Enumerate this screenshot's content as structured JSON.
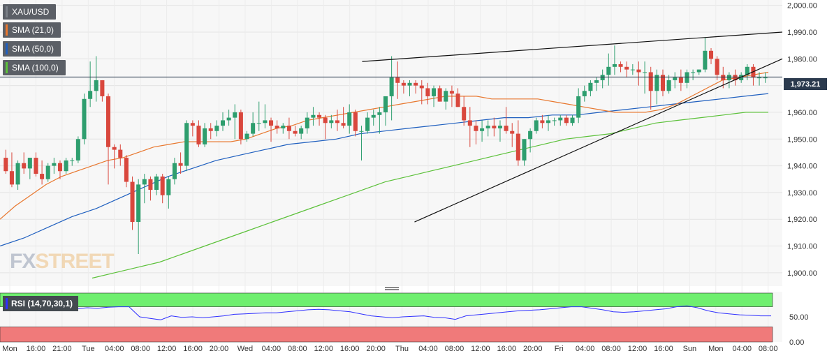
{
  "legend": [
    {
      "label": "XAU/USD",
      "color": "#5b5f66"
    },
    {
      "label": "SMA (21,0)",
      "color": "#e8772e"
    },
    {
      "label": "SMA (50,0)",
      "color": "#1f5fbf"
    },
    {
      "label": "SMA (100,0)",
      "color": "#5cc13a"
    }
  ],
  "rsi_label": "RSI (14,70,30,1)",
  "last_price": "1,973.21",
  "watermark": {
    "part1": "FX",
    "part2": "STREET"
  },
  "chart_data": {
    "type": "candlestick",
    "symbol": "XAU/USD",
    "ylim": [
      1895,
      2002
    ],
    "y_ticks": [
      "2,000.00",
      "1,990.00",
      "1,980.00",
      "1,970.00",
      "1,960.00",
      "1,950.00",
      "1,940.00",
      "1,930.00",
      "1,920.00",
      "1,910.00",
      "1,900.00"
    ],
    "x_ticks": [
      "Mon",
      "16:00",
      "21:00",
      "Tue",
      "04:00",
      "08:00",
      "12:00",
      "16:00",
      "20:00",
      "Wed",
      "04:00",
      "08:00",
      "12:00",
      "16:00",
      "20:00",
      "Thu",
      "04:00",
      "08:00",
      "12:00",
      "16:00",
      "20:00",
      "Fri",
      "04:00",
      "08:00",
      "12:00",
      "16:00",
      "Sun",
      "Mon",
      "04:00",
      "08:00"
    ],
    "last_price": 1973.21,
    "candles": [
      [
        1943,
        1946,
        1937,
        1938
      ],
      [
        1938,
        1945,
        1932,
        1933
      ],
      [
        1933,
        1942,
        1931,
        1941
      ],
      [
        1941,
        1945,
        1937,
        1939
      ],
      [
        1939,
        1943,
        1935,
        1943
      ],
      [
        1943,
        1945,
        1936,
        1937
      ],
      [
        1937,
        1942,
        1933,
        1935
      ],
      [
        1935,
        1941,
        1934,
        1940
      ],
      [
        1940,
        1943,
        1937,
        1941
      ],
      [
        1941,
        1942,
        1935,
        1938
      ],
      [
        1938,
        1943,
        1937,
        1942
      ],
      [
        1942,
        1943,
        1940,
        1942
      ],
      [
        1942,
        1951,
        1941,
        1950
      ],
      [
        1950,
        1967,
        1948,
        1965
      ],
      [
        1965,
        1979,
        1962,
        1968
      ],
      [
        1968,
        1981,
        1964,
        1972
      ],
      [
        1972,
        1972,
        1964,
        1966
      ],
      [
        1966,
        1967,
        1933,
        1947
      ],
      [
        1947,
        1948,
        1939,
        1946
      ],
      [
        1946,
        1948,
        1940,
        1943
      ],
      [
        1943,
        1944,
        1932,
        1934
      ],
      [
        1934,
        1936,
        1916,
        1919
      ],
      [
        1919,
        1935,
        1907,
        1933
      ],
      [
        1933,
        1937,
        1926,
        1935
      ],
      [
        1935,
        1936,
        1927,
        1931
      ],
      [
        1931,
        1937,
        1929,
        1936
      ],
      [
        1936,
        1937,
        1926,
        1929
      ],
      [
        1929,
        1936,
        1924,
        1935
      ],
      [
        1935,
        1943,
        1933,
        1941
      ],
      [
        1941,
        1945,
        1937,
        1940
      ],
      [
        1940,
        1957,
        1938,
        1956
      ],
      [
        1956,
        1957,
        1951,
        1955
      ],
      [
        1955,
        1957,
        1947,
        1948
      ],
      [
        1948,
        1956,
        1947,
        1954
      ],
      [
        1954,
        1956,
        1950,
        1953
      ],
      [
        1953,
        1957,
        1951,
        1955
      ],
      [
        1955,
        1960,
        1953,
        1957
      ],
      [
        1957,
        1961,
        1955,
        1958
      ],
      [
        1958,
        1963,
        1950,
        1960
      ],
      [
        1960,
        1961,
        1948,
        1950
      ],
      [
        1950,
        1953,
        1949,
        1952
      ],
      [
        1952,
        1960,
        1951,
        1956
      ],
      [
        1956,
        1964,
        1953,
        1956
      ],
      [
        1956,
        1963,
        1954,
        1957
      ],
      [
        1957,
        1958,
        1949,
        1955
      ],
      [
        1955,
        1957,
        1952,
        1954
      ],
      [
        1954,
        1956,
        1952,
        1955
      ],
      [
        1955,
        1958,
        1950,
        1953
      ],
      [
        1953,
        1955,
        1951,
        1952
      ],
      [
        1952,
        1955,
        1950,
        1954
      ],
      [
        1954,
        1960,
        1952,
        1958
      ],
      [
        1958,
        1962,
        1955,
        1959
      ],
      [
        1959,
        1960,
        1955,
        1958
      ],
      [
        1958,
        1959,
        1950,
        1956
      ],
      [
        1956,
        1959,
        1954,
        1957
      ],
      [
        1957,
        1961,
        1953,
        1956
      ],
      [
        1956,
        1962,
        1954,
        1955
      ],
      [
        1955,
        1963,
        1952,
        1960
      ],
      [
        1960,
        1961,
        1951,
        1953
      ],
      [
        1953,
        1955,
        1942,
        1953
      ],
      [
        1953,
        1960,
        1952,
        1958
      ],
      [
        1958,
        1961,
        1955,
        1959
      ],
      [
        1959,
        1962,
        1952,
        1960
      ],
      [
        1960,
        1966,
        1955,
        1966
      ],
      [
        1966,
        1981,
        1957,
        1973
      ],
      [
        1973,
        1979,
        1965,
        1971
      ],
      [
        1971,
        1972,
        1967,
        1970
      ],
      [
        1970,
        1972,
        1966,
        1971
      ],
      [
        1971,
        1972,
        1967,
        1970
      ],
      [
        1970,
        1972,
        1963,
        1969
      ],
      [
        1969,
        1971,
        1963,
        1966
      ],
      [
        1966,
        1970,
        1962,
        1969
      ],
      [
        1969,
        1970,
        1964,
        1964
      ],
      [
        1964,
        1969,
        1961,
        1968
      ],
      [
        1968,
        1970,
        1962,
        1967
      ],
      [
        1967,
        1969,
        1962,
        1962
      ],
      [
        1962,
        1966,
        1955,
        1957
      ],
      [
        1957,
        1962,
        1947,
        1955
      ],
      [
        1955,
        1957,
        1948,
        1953
      ],
      [
        1953,
        1957,
        1949,
        1954
      ],
      [
        1954,
        1957,
        1951,
        1955
      ],
      [
        1955,
        1958,
        1951,
        1954
      ],
      [
        1954,
        1957,
        1949,
        1955
      ],
      [
        1955,
        1962,
        1952,
        1953
      ],
      [
        1953,
        1956,
        1947,
        1952
      ],
      [
        1952,
        1957,
        1940,
        1942
      ],
      [
        1942,
        1950,
        1940,
        1950
      ],
      [
        1950,
        1954,
        1945,
        1953
      ],
      [
        1953,
        1958,
        1952,
        1957
      ],
      [
        1957,
        1959,
        1954,
        1956
      ],
      [
        1956,
        1959,
        1953,
        1957
      ],
      [
        1957,
        1958,
        1955,
        1957
      ],
      [
        1957,
        1959,
        1955,
        1958
      ],
      [
        1958,
        1959,
        1955,
        1956
      ],
      [
        1956,
        1959,
        1955,
        1958
      ],
      [
        1958,
        1969,
        1956,
        1966
      ],
      [
        1966,
        1970,
        1964,
        1968
      ],
      [
        1968,
        1972,
        1966,
        1971
      ],
      [
        1971,
        1973,
        1968,
        1972
      ],
      [
        1972,
        1976,
        1969,
        1974
      ],
      [
        1974,
        1982,
        1970,
        1977
      ],
      [
        1977,
        1985,
        1974,
        1978
      ],
      [
        1978,
        1979,
        1975,
        1977
      ],
      [
        1977,
        1979,
        1973,
        1976
      ],
      [
        1976,
        1978,
        1974,
        1976
      ],
      [
        1976,
        1979,
        1970,
        1975
      ],
      [
        1975,
        1979,
        1967,
        1975
      ],
      [
        1975,
        1977,
        1961,
        1968
      ],
      [
        1968,
        1976,
        1963,
        1974
      ],
      [
        1974,
        1976,
        1966,
        1968
      ],
      [
        1968,
        1974,
        1967,
        1972
      ],
      [
        1972,
        1975,
        1969,
        1973
      ],
      [
        1973,
        1976,
        1968,
        1971
      ],
      [
        1971,
        1976,
        1969,
        1975
      ],
      [
        1975,
        1976,
        1972,
        1975
      ],
      [
        1975,
        1976,
        1974,
        1976
      ],
      [
        1976,
        1988,
        1975,
        1983
      ],
      [
        1983,
        1984,
        1978,
        1980
      ],
      [
        1980,
        1981,
        1972,
        1974
      ],
      [
        1974,
        1977,
        1969,
        1972
      ],
      [
        1972,
        1975,
        1969,
        1974
      ],
      [
        1974,
        1976,
        1970,
        1972
      ],
      [
        1972,
        1975,
        1971,
        1974
      ],
      [
        1974,
        1978,
        1972,
        1977
      ],
      [
        1977,
        1978,
        1970,
        1973
      ],
      [
        1973,
        1975,
        1970,
        1973
      ],
      [
        1973,
        1975,
        1971,
        1973
      ]
    ],
    "sma21": [
      1920,
      1925,
      1929,
      1933,
      1936,
      1938,
      1940,
      1942,
      1943,
      1945,
      1947,
      1948,
      1949,
      1949,
      1949,
      1949,
      1950,
      1952,
      1954,
      1955,
      1957,
      1958,
      1959,
      1960,
      1961,
      1962,
      1963,
      1964,
      1965,
      1966,
      1966,
      1966,
      1965,
      1965,
      1965,
      1965,
      1964,
      1963,
      1962,
      1961,
      1960,
      1960,
      1960,
      1961,
      1963,
      1966,
      1969,
      1972,
      1973,
      1974,
      1975
    ],
    "sma50": [
      1910,
      1913,
      1917,
      1921,
      1924,
      1928,
      1932,
      1936,
      1939,
      1942,
      1944,
      1946,
      1948,
      1949,
      1950,
      1952,
      1953,
      1954,
      1955,
      1956,
      1957,
      1958,
      1958,
      1959,
      1959,
      1960,
      1961,
      1962,
      1963,
      1964,
      1965,
      1966,
      1967
    ],
    "sma100": [
      1898,
      1900,
      1902,
      1904,
      1907,
      1910,
      1913,
      1916,
      1919,
      1922,
      1925,
      1928,
      1931,
      1934,
      1936,
      1938,
      1940,
      1942,
      1944,
      1946,
      1948,
      1950,
      1951,
      1952,
      1954,
      1956,
      1957,
      1958,
      1959,
      1960,
      1960
    ],
    "trendlines": [
      {
        "from": [
          18,
          1979
        ],
        "to": [
          138,
          1990
        ]
      },
      {
        "from": [
          18,
          1919
        ],
        "to": [
          138,
          1980
        ]
      }
    ],
    "rsi": {
      "ylim": [
        0,
        100
      ],
      "y_ticks": [
        "50.00",
        "0.00"
      ],
      "overbought": 70,
      "oversold": 30,
      "values": [
        68,
        65,
        62,
        66,
        63,
        67,
        64,
        66,
        68,
        67,
        69,
        70,
        70,
        50,
        47,
        44,
        52,
        49,
        50,
        48,
        50,
        52,
        55,
        56,
        57,
        58,
        58,
        60,
        62,
        64,
        65,
        64,
        62,
        60,
        56,
        52,
        50,
        48,
        50,
        51,
        52,
        49,
        48,
        45,
        52,
        54,
        56,
        58,
        60,
        62,
        63,
        64,
        66,
        68,
        70,
        70,
        67,
        64,
        60,
        59,
        60,
        62,
        64,
        66,
        70,
        72,
        68,
        62,
        58,
        56,
        54,
        53,
        52,
        52
      ]
    }
  }
}
